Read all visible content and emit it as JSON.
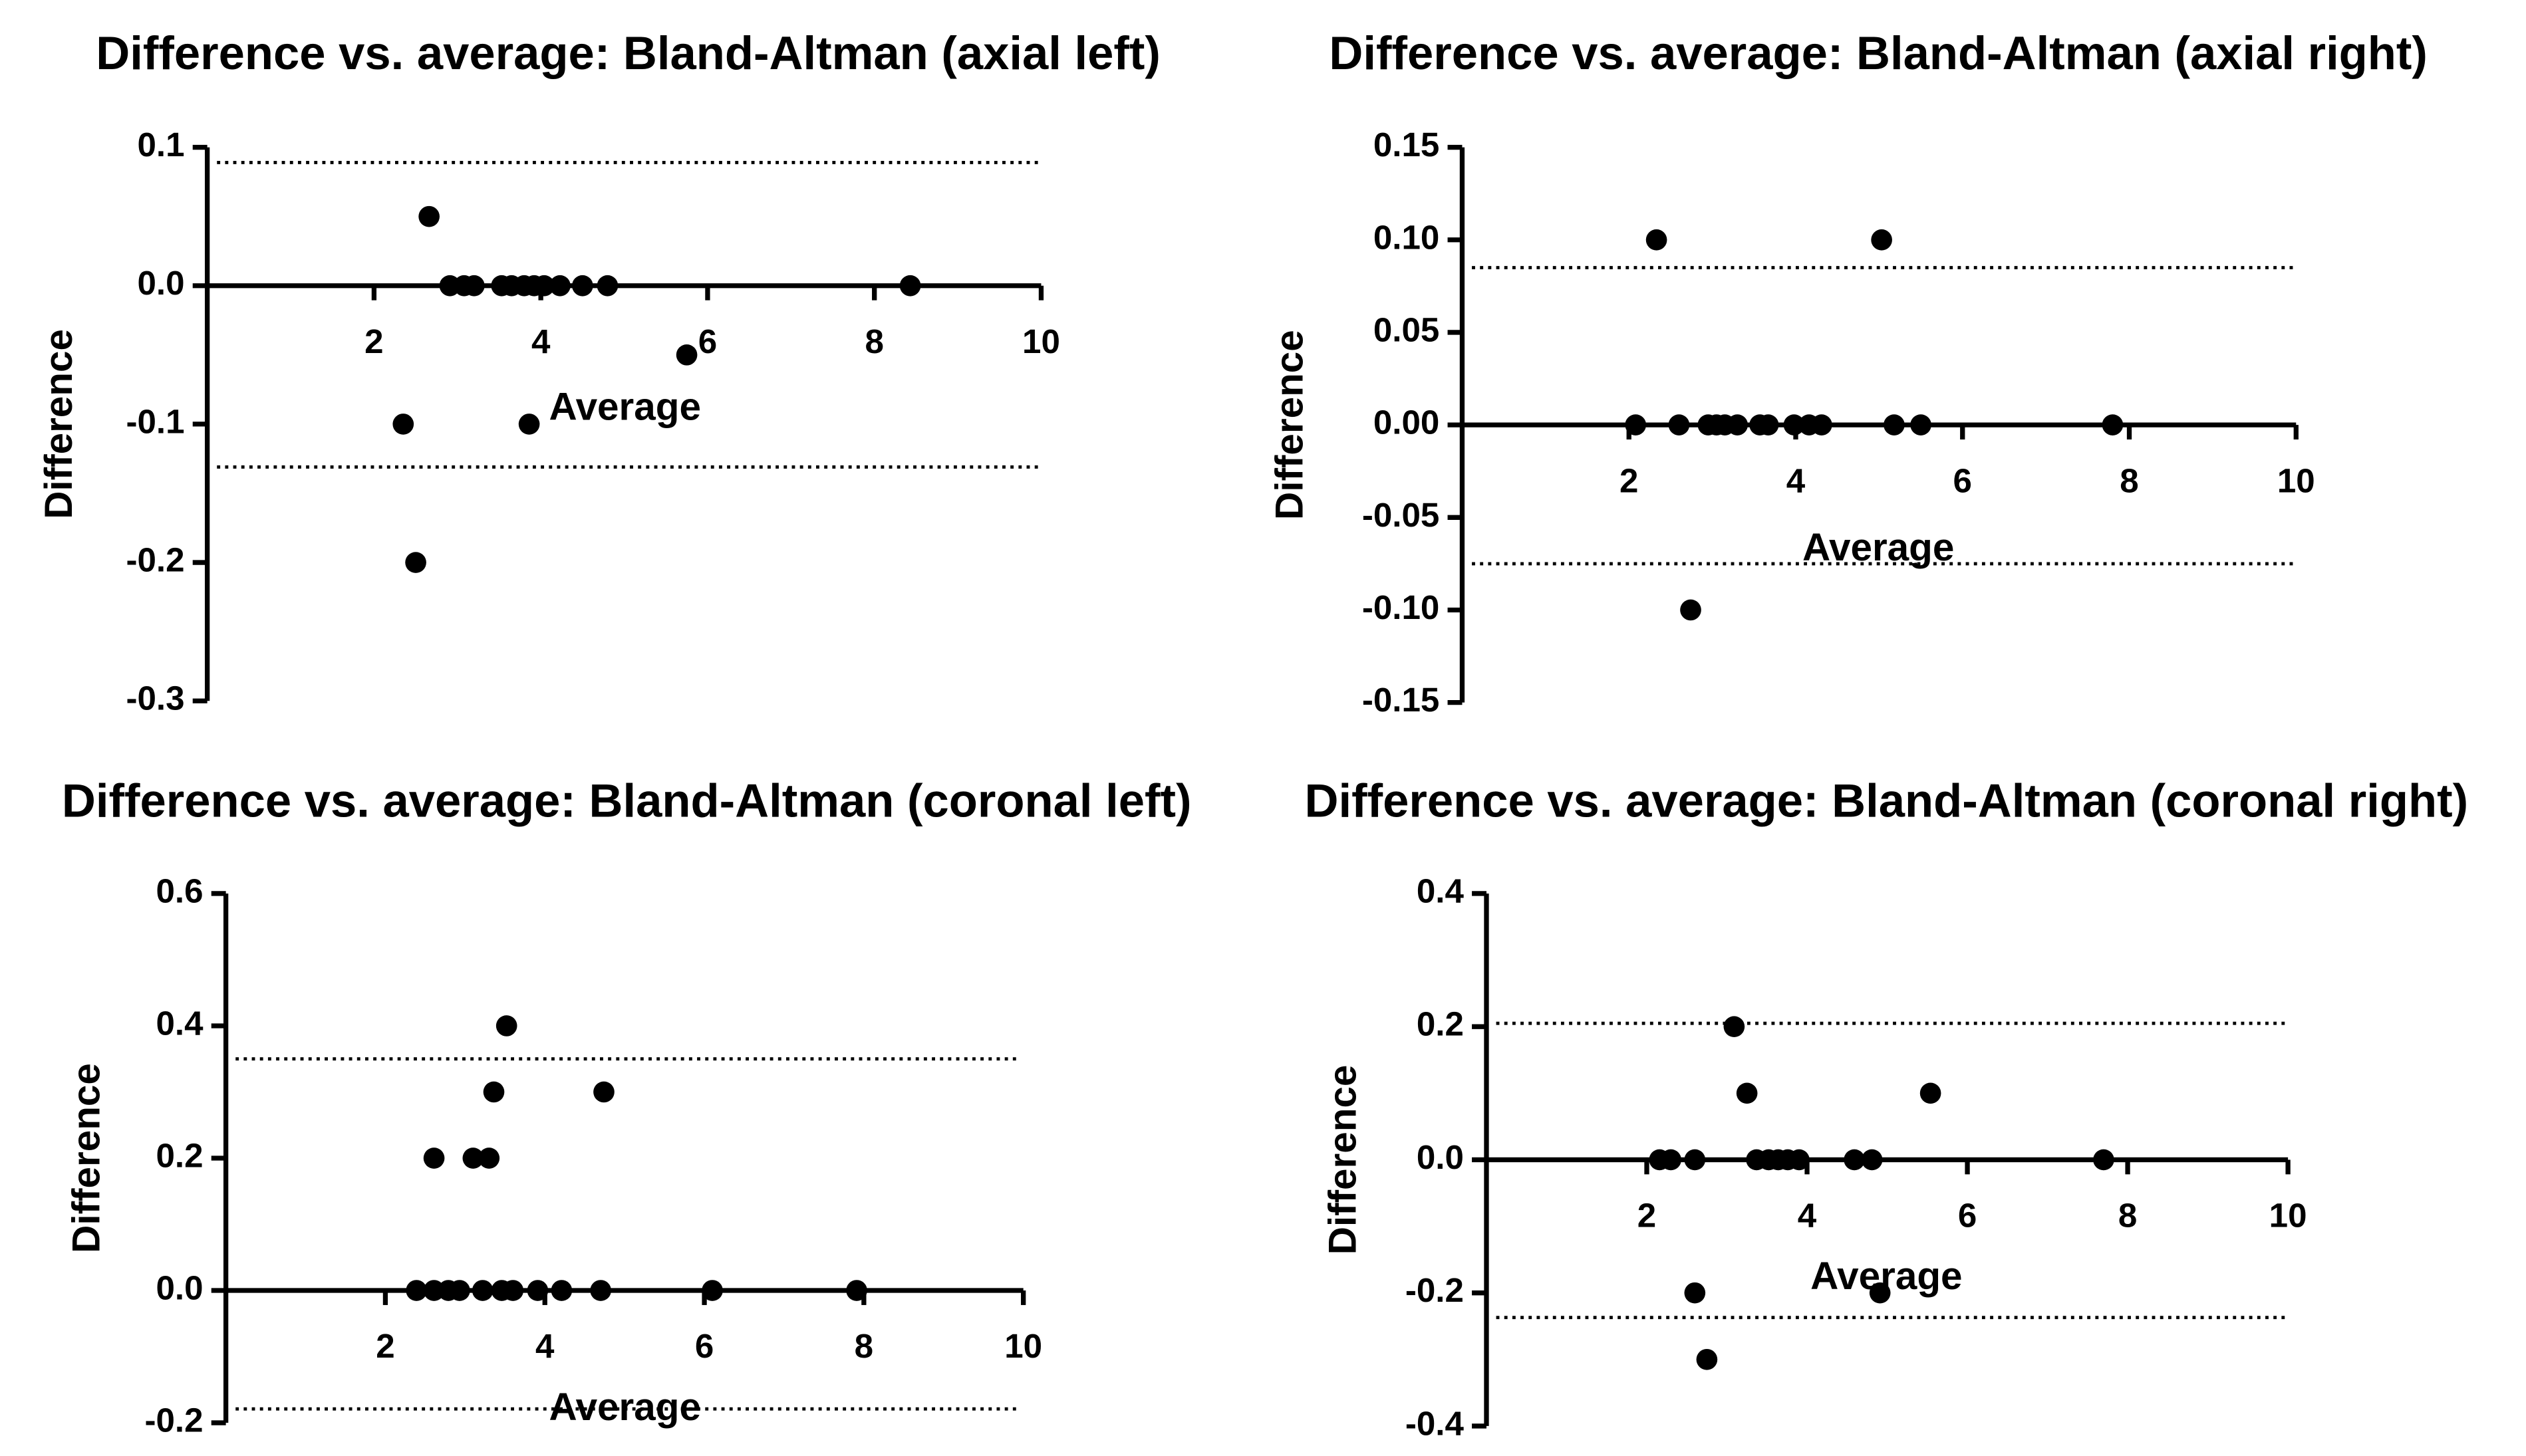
{
  "chart_data": [
    {
      "type": "scatter",
      "title": "Difference vs. average: Bland-Altman (axial left)",
      "x_label": "Average",
      "y_label": "Difference",
      "color": "#000000",
      "x": [
        2.66,
        2.91,
        3.08,
        3.2,
        3.53,
        3.65,
        3.8,
        3.92,
        4.04,
        4.23,
        4.5,
        4.8,
        8.43,
        2.35,
        3.86,
        5.75,
        2.5
      ],
      "values": [
        0.05,
        0,
        0,
        0,
        0,
        0,
        0,
        0,
        0,
        0,
        0,
        0,
        0,
        -0.1,
        -0.1,
        -0.05,
        -0.2
      ],
      "reference_lines": [
        0.089,
        -0.131
      ],
      "xlim": [
        0,
        10
      ],
      "xticks": [
        2,
        4,
        6,
        8,
        10
      ],
      "ylim": [
        -0.3,
        0.1
      ],
      "yticks": [
        0.1,
        {
          "value": 0,
          "label": "0.0"
        },
        -0.1,
        -0.2,
        -0.3
      ]
    },
    {
      "type": "scatter",
      "title": "Difference vs. average: Bland-Altman (axial right)",
      "x_label": "Average",
      "y_label": "Difference",
      "color": "#000000",
      "x": [
        2.33,
        5.03,
        2.08,
        2.6,
        2.95,
        3.05,
        3.15,
        3.3,
        3.57,
        3.67,
        3.98,
        4.16,
        4.31,
        5.18,
        5.5,
        7.8,
        2.74
      ],
      "values": [
        0.1,
        0.1,
        0,
        0,
        0,
        0,
        0,
        0,
        0,
        0,
        0,
        0,
        0,
        0,
        0,
        0,
        -0.1
      ],
      "reference_lines": [
        0.085,
        -0.075
      ],
      "xlim": [
        0,
        10
      ],
      "xticks": [
        2,
        4,
        6,
        8,
        10
      ],
      "ylim": [
        -0.15,
        0.15
      ],
      "yticks": [
        0.15,
        {
          "value": 0.1,
          "label": "0.10"
        },
        0.05,
        {
          "value": 0,
          "label": "0.00"
        },
        -0.05,
        {
          "value": -0.1,
          "label": "-0.10"
        },
        -0.15
      ]
    },
    {
      "type": "scatter",
      "title": "Difference vs. average: Bland-Altman (coronal left)",
      "x_label": "Average",
      "y_label": "Difference",
      "color": "#000000",
      "x": [
        3.52,
        3.36,
        4.74,
        2.61,
        3.1,
        3.3,
        2.39,
        2.61,
        2.79,
        2.93,
        3.22,
        3.46,
        3.6,
        3.91,
        4.21,
        4.7,
        6.1,
        7.91
      ],
      "values": [
        0.4,
        0.3,
        0.3,
        0.2,
        0.2,
        0.2,
        0,
        0,
        0,
        0,
        0,
        0,
        0,
        0,
        0,
        0,
        0,
        0
      ],
      "reference_lines": [
        0.35,
        -0.179
      ],
      "xlim": [
        0,
        10
      ],
      "xticks": [
        2,
        4,
        6,
        8,
        10
      ],
      "ylim": [
        -0.2,
        0.6
      ],
      "yticks": [
        0.6,
        0.4,
        0.2,
        {
          "value": 0,
          "label": "0.0"
        },
        -0.2
      ]
    },
    {
      "type": "scatter",
      "title": "Difference vs. average: Bland-Altman (coronal right)",
      "x_label": "Average",
      "y_label": "Difference",
      "color": "#000000",
      "x": [
        3.09,
        3.25,
        5.54,
        2.16,
        2.3,
        2.6,
        3.37,
        3.52,
        3.64,
        3.76,
        3.9,
        4.59,
        4.81,
        7.7,
        2.6,
        4.91,
        2.75
      ],
      "values": [
        0.2,
        0.1,
        0.1,
        0,
        0,
        0,
        0,
        0,
        0,
        0,
        0,
        0,
        0,
        0,
        -0.2,
        -0.2,
        -0.3
      ],
      "reference_lines": [
        0.205,
        -0.237
      ],
      "xlim": [
        0,
        10
      ],
      "xticks": [
        2,
        4,
        6,
        8,
        10
      ],
      "ylim": [
        -0.4,
        0.4
      ],
      "yticks": [
        0.4,
        0.2,
        {
          "value": 0,
          "label": "0.0"
        },
        -0.2,
        -0.4
      ]
    }
  ]
}
